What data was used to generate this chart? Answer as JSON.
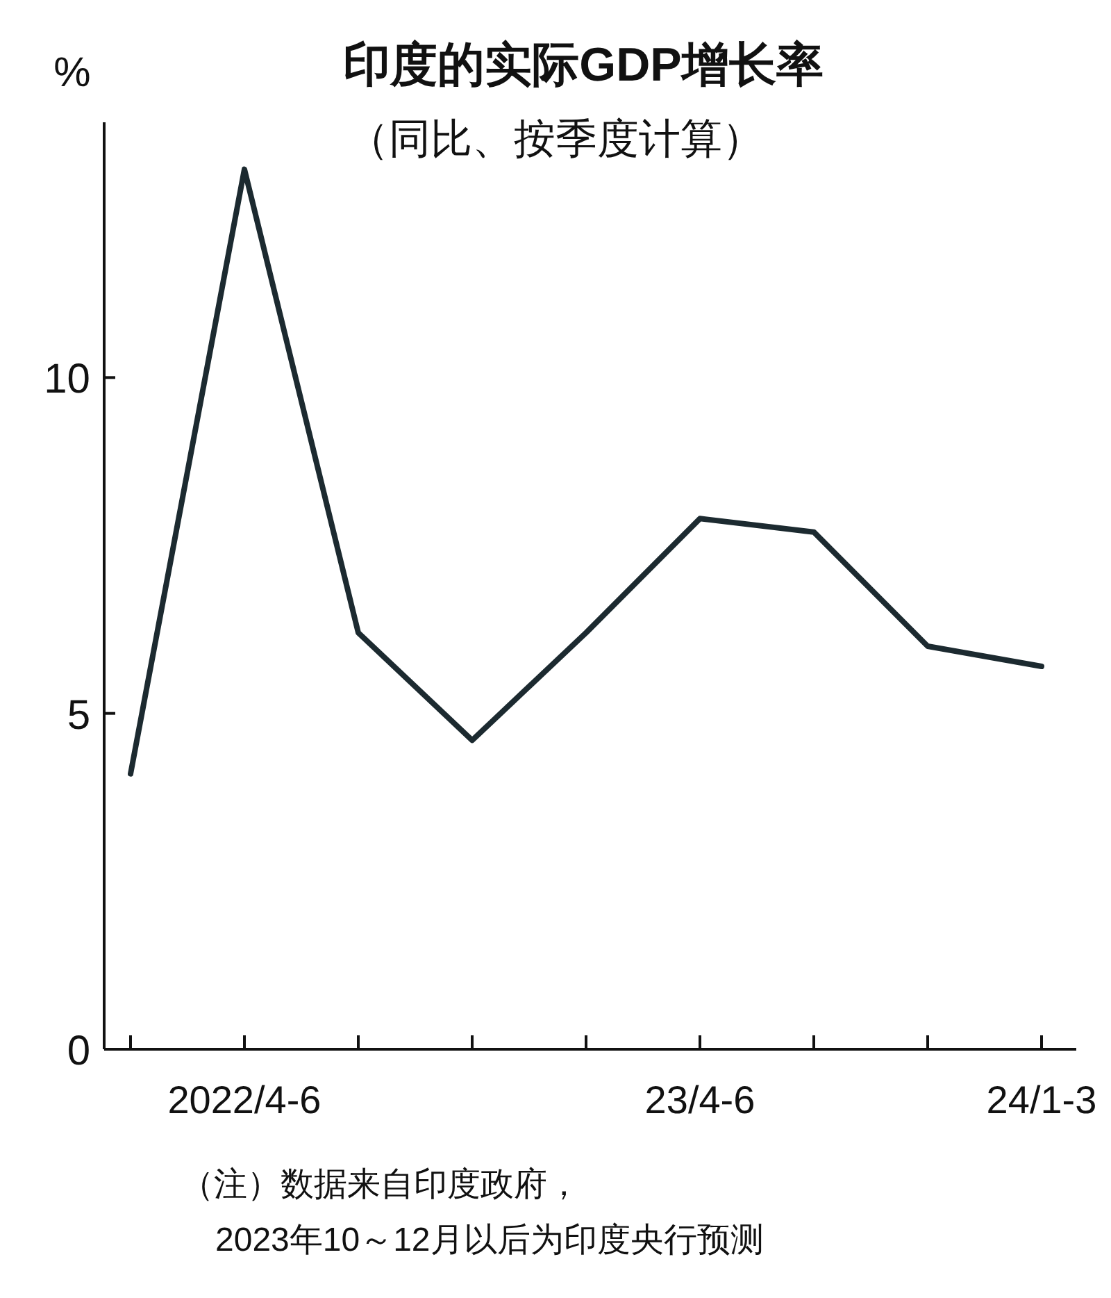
{
  "chart_data": {
    "type": "line",
    "title": "印度的实际GDP增长率",
    "subtitle": "（同比、按季度计算）",
    "ylabel": "%",
    "categories": [
      null,
      "2022/4-6",
      null,
      null,
      null,
      "23/4-6",
      null,
      null,
      "24/1-3"
    ],
    "series": [
      {
        "color": "#1c2a30",
        "values": [
          4.1,
          13.1,
          6.2,
          4.6,
          6.2,
          7.9,
          7.7,
          6.0,
          5.7
        ]
      }
    ],
    "ylim": [
      0,
      13.8
    ],
    "yticks": [
      0,
      5,
      10
    ],
    "grid": false,
    "marker": "none",
    "line_style": "solid",
    "annotations": [
      "（注）数据来自印度政府，",
      "2023年10～12月以后为印度央行预测"
    ]
  }
}
